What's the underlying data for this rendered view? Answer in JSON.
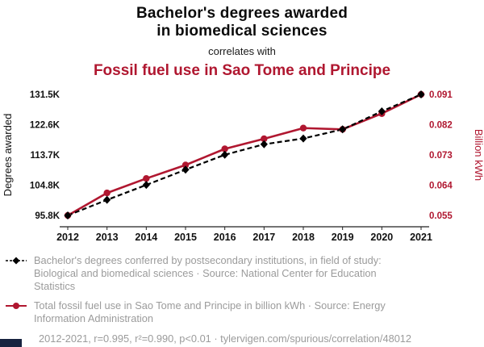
{
  "header": {
    "title_line1": "Bachelor's degrees awarded",
    "title_line2": "in biomedical sciences",
    "connector": "correlates with",
    "title2": "Fossil fuel use in Sao Tome and Principe"
  },
  "colors": {
    "accent_red": "#b01730",
    "series_black": "#000000",
    "gray_text": "#9b9b9b",
    "axis_dark": "#222222",
    "corner_navy": "#17233f"
  },
  "chart_data": {
    "type": "line",
    "x": [
      2012,
      2013,
      2014,
      2015,
      2016,
      2017,
      2018,
      2019,
      2020,
      2021
    ],
    "xlabel": "",
    "series": [
      {
        "name": "Bachelor's degrees awarded in biomedical sciences",
        "axis": "left",
        "color": "#000000",
        "style": "dashed",
        "marker": "diamond",
        "values": [
          95800,
          100400,
          104800,
          109300,
          113700,
          116800,
          118500,
          121200,
          126500,
          131500
        ]
      },
      {
        "name": "Fossil fuel use in Sao Tome and Principe",
        "axis": "right",
        "color": "#b01730",
        "style": "solid",
        "marker": "circle",
        "values": [
          0.055,
          0.0617,
          0.066,
          0.07,
          0.0748,
          0.0778,
          0.081,
          0.0806,
          0.0853,
          0.091
        ]
      }
    ],
    "left_axis": {
      "label": "Degrees awarded",
      "ticks": [
        "95.8K",
        "104.8K",
        "113.7K",
        "122.6K",
        "131.5K"
      ],
      "min": 95800,
      "max": 131500
    },
    "right_axis": {
      "label": "Billion kWh",
      "ticks": [
        "0.055",
        "0.064",
        "0.073",
        "0.082",
        "0.091"
      ],
      "min": 0.055,
      "max": 0.091
    },
    "grid": false,
    "legend_position": "bottom"
  },
  "legend": [
    {
      "marker": "diamond-dashed",
      "text": "Bachelor's degrees conferred by postsecondary institutions, in field of study: Biological and biomedical sciences · Source: National Center for Education Statistics"
    },
    {
      "marker": "circle-line",
      "text": "Total fossil fuel use in Sao Tome and Principe in billion kWh · Source: Energy Information Administration"
    }
  ],
  "footer": {
    "stats": "2012-2021, r=0.995, r²=0.990, p<0.01 · tylervigen.com/spurious/correlation/48012"
  }
}
